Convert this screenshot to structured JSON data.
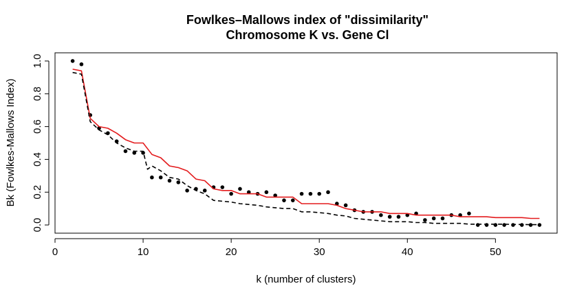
{
  "chart_data": {
    "type": "scatter",
    "title_line1": "Fowlkes–Mallows index of \"dissimilarity\"",
    "title_line2": "Chromosome K vs. Gene Cl",
    "xlabel": "k (number of clusters)",
    "ylabel": "Bk (Fowlkes-Mallows Index)",
    "xlim": [
      0,
      57
    ],
    "ylim": [
      -0.05,
      1.05
    ],
    "x_ticks": [
      0,
      10,
      20,
      30,
      40,
      50
    ],
    "y_ticks": [
      0.0,
      0.2,
      0.4,
      0.6,
      0.8,
      1.0
    ],
    "x_tick_labels": [
      "0",
      "10",
      "20",
      "30",
      "40",
      "50"
    ],
    "y_tick_labels": [
      "0.0",
      "0.2",
      "0.4",
      "0.6",
      "0.8",
      "1.0"
    ],
    "grid": false,
    "legend": "none",
    "series": [
      {
        "style": "points",
        "color": "#000000",
        "x": [
          2,
          3,
          4,
          5,
          6,
          7,
          8,
          9,
          10,
          11,
          12,
          13,
          14,
          15,
          16,
          17,
          18,
          19,
          20,
          21,
          22,
          23,
          24,
          25,
          26,
          27,
          28,
          29,
          30,
          31,
          32,
          33,
          34,
          35,
          36,
          37,
          38,
          39,
          40,
          41,
          42,
          43,
          44,
          45,
          46,
          47,
          48,
          49,
          50,
          51,
          52,
          53,
          54,
          55
        ],
        "y": [
          1.0,
          0.98,
          0.67,
          0.59,
          0.56,
          0.51,
          0.45,
          0.44,
          0.44,
          0.29,
          0.29,
          0.27,
          0.26,
          0.21,
          0.22,
          0.21,
          0.23,
          0.23,
          0.19,
          0.22,
          0.2,
          0.19,
          0.2,
          0.18,
          0.15,
          0.15,
          0.19,
          0.19,
          0.19,
          0.2,
          0.13,
          0.12,
          0.09,
          0.08,
          0.08,
          0.06,
          0.05,
          0.05,
          0.06,
          0.07,
          0.03,
          0.04,
          0.04,
          0.06,
          0.06,
          0.07,
          0.0,
          0.0,
          0.0,
          0.0,
          0.0,
          0.0,
          0.0,
          0.0
        ]
      },
      {
        "style": "solid",
        "color": "#e31a1c",
        "x": [
          2,
          3,
          4,
          5,
          6,
          7,
          8,
          9,
          10,
          11,
          12,
          13,
          14,
          15,
          16,
          17,
          18,
          19,
          20,
          21,
          22,
          23,
          24,
          25,
          26,
          27,
          28,
          29,
          30,
          31,
          32,
          33,
          34,
          35,
          36,
          37,
          38,
          39,
          40,
          41,
          42,
          43,
          44,
          45,
          46,
          47,
          48,
          49,
          50,
          51,
          52,
          53,
          54,
          55
        ],
        "y": [
          0.95,
          0.94,
          0.65,
          0.6,
          0.59,
          0.56,
          0.52,
          0.5,
          0.5,
          0.43,
          0.41,
          0.36,
          0.35,
          0.33,
          0.28,
          0.27,
          0.22,
          0.21,
          0.21,
          0.19,
          0.19,
          0.19,
          0.17,
          0.17,
          0.17,
          0.17,
          0.13,
          0.13,
          0.13,
          0.13,
          0.12,
          0.1,
          0.09,
          0.08,
          0.08,
          0.08,
          0.07,
          0.07,
          0.07,
          0.06,
          0.06,
          0.06,
          0.06,
          0.06,
          0.05,
          0.05,
          0.05,
          0.05,
          0.045,
          0.045,
          0.045,
          0.045,
          0.04,
          0.04
        ]
      },
      {
        "style": "dashed",
        "color": "#000000",
        "x": [
          2,
          3,
          4,
          5,
          6,
          7,
          8,
          9,
          10,
          10.5,
          11,
          12,
          13,
          14,
          15,
          16,
          17,
          18,
          19,
          20,
          21,
          22,
          23,
          24,
          25,
          26,
          27,
          28,
          29,
          30,
          31,
          32,
          33,
          34,
          35,
          36,
          37,
          38,
          39,
          40,
          41,
          42,
          43,
          44,
          45,
          46,
          47,
          48,
          49,
          50,
          51,
          52,
          53,
          54,
          55
        ],
        "y": [
          0.93,
          0.92,
          0.63,
          0.58,
          0.55,
          0.5,
          0.47,
          0.45,
          0.45,
          0.34,
          0.36,
          0.33,
          0.29,
          0.28,
          0.24,
          0.21,
          0.19,
          0.15,
          0.145,
          0.14,
          0.13,
          0.125,
          0.12,
          0.11,
          0.105,
          0.1,
          0.1,
          0.08,
          0.08,
          0.075,
          0.07,
          0.06,
          0.055,
          0.04,
          0.035,
          0.03,
          0.025,
          0.02,
          0.02,
          0.02,
          0.015,
          0.015,
          0.01,
          0.01,
          0.01,
          0.01,
          0.005,
          0.005,
          0.005,
          0.005,
          0.005,
          0.003,
          0.003,
          0.002,
          0.002
        ]
      }
    ]
  }
}
